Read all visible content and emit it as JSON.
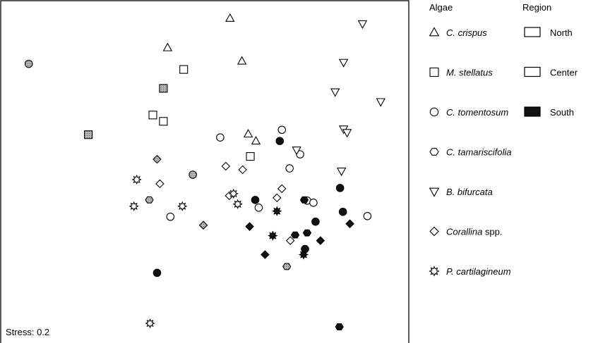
{
  "chart_data": {
    "type": "scatter",
    "title": "",
    "xlabel": "",
    "ylabel": "",
    "annotation": "Stress: 0.2",
    "xlim": [
      0,
      580
    ],
    "ylim": [
      0,
      487
    ],
    "legend_algae_title": "Algae",
    "legend_region_title": "Region",
    "species": [
      {
        "key": "crispus",
        "italic": "C. crispus",
        "suffix": "",
        "marker": "triangle-up"
      },
      {
        "key": "stellatus",
        "italic": "M. stellatus",
        "suffix": "",
        "marker": "square"
      },
      {
        "key": "tomentosum",
        "italic": "C. tomentosum",
        "suffix": "",
        "marker": "circle"
      },
      {
        "key": "tamariscifolia",
        "italic": "C. tamariscifolia",
        "suffix": "",
        "marker": "hexagon"
      },
      {
        "key": "bifurcata",
        "italic": "B. bifurcata",
        "suffix": "",
        "marker": "triangle-down"
      },
      {
        "key": "corallina",
        "italic": "Corallina",
        "suffix": " spp.",
        "marker": "diamond"
      },
      {
        "key": "cartilagineum",
        "italic": "P. cartilagineum",
        "suffix": "",
        "marker": "star"
      }
    ],
    "regions": [
      {
        "key": "north",
        "label": "North",
        "fill": "#ffffff"
      },
      {
        "key": "center",
        "label": "Center",
        "fill": "#ffffff"
      },
      {
        "key": "south",
        "label": "South",
        "fill": "#111111"
      }
    ],
    "points": [
      {
        "x": 326,
        "y": 463,
        "species": "crispus",
        "region": "north"
      },
      {
        "x": 237,
        "y": 421,
        "species": "crispus",
        "region": "north"
      },
      {
        "x": 343,
        "y": 402,
        "species": "crispus",
        "region": "north"
      },
      {
        "x": 352,
        "y": 298,
        "species": "crispus",
        "region": "north"
      },
      {
        "x": 363,
        "y": 288,
        "species": "crispus",
        "region": "north"
      },
      {
        "x": 260,
        "y": 390,
        "species": "stellatus",
        "region": "north"
      },
      {
        "x": 231,
        "y": 363,
        "species": "stellatus",
        "region": "center"
      },
      {
        "x": 216,
        "y": 325,
        "species": "stellatus",
        "region": "north"
      },
      {
        "x": 231,
        "y": 316,
        "species": "stellatus",
        "region": "north"
      },
      {
        "x": 124,
        "y": 297,
        "species": "stellatus",
        "region": "center"
      },
      {
        "x": 355,
        "y": 266,
        "species": "stellatus",
        "region": "north"
      },
      {
        "x": 39,
        "y": 398,
        "species": "tomentosum",
        "region": "center"
      },
      {
        "x": 312,
        "y": 293,
        "species": "tomentosum",
        "region": "north"
      },
      {
        "x": 400,
        "y": 304,
        "species": "tomentosum",
        "region": "north"
      },
      {
        "x": 397,
        "y": 288,
        "species": "tomentosum",
        "region": "south"
      },
      {
        "x": 426,
        "y": 269,
        "species": "tomentosum",
        "region": "north"
      },
      {
        "x": 411,
        "y": 249,
        "species": "tomentosum",
        "region": "north"
      },
      {
        "x": 273,
        "y": 240,
        "species": "tomentosum",
        "region": "center"
      },
      {
        "x": 241,
        "y": 180,
        "species": "tomentosum",
        "region": "north"
      },
      {
        "x": 367,
        "y": 193,
        "species": "tomentosum",
        "region": "north"
      },
      {
        "x": 436,
        "y": 203,
        "species": "tomentosum",
        "region": "north"
      },
      {
        "x": 445,
        "y": 200,
        "species": "tomentosum",
        "region": "north"
      },
      {
        "x": 483,
        "y": 221,
        "species": "tomentosum",
        "region": "south"
      },
      {
        "x": 487,
        "y": 187,
        "species": "tomentosum",
        "region": "south"
      },
      {
        "x": 522,
        "y": 181,
        "species": "tomentosum",
        "region": "north"
      },
      {
        "x": 448,
        "y": 173,
        "species": "tomentosum",
        "region": "south"
      },
      {
        "x": 362,
        "y": 204,
        "species": "tomentosum",
        "region": "south"
      },
      {
        "x": 222,
        "y": 100,
        "species": "tomentosum",
        "region": "south"
      },
      {
        "x": 433,
        "y": 134,
        "species": "tomentosum",
        "region": "south"
      },
      {
        "x": 211,
        "y": 204,
        "species": "tamariscifolia",
        "region": "center"
      },
      {
        "x": 407,
        "y": 109,
        "species": "tamariscifolia",
        "region": "center"
      },
      {
        "x": 432,
        "y": 204,
        "species": "tamariscifolia",
        "region": "south"
      },
      {
        "x": 419,
        "y": 154,
        "species": "tamariscifolia",
        "region": "south"
      },
      {
        "x": 436,
        "y": 157,
        "species": "tamariscifolia",
        "region": "south"
      },
      {
        "x": 482,
        "y": 23,
        "species": "tamariscifolia",
        "region": "south"
      },
      {
        "x": 515,
        "y": 455,
        "species": "bifurcata",
        "region": "north"
      },
      {
        "x": 488,
        "y": 400,
        "species": "bifurcata",
        "region": "north"
      },
      {
        "x": 476,
        "y": 358,
        "species": "bifurcata",
        "region": "north"
      },
      {
        "x": 541,
        "y": 344,
        "species": "bifurcata",
        "region": "north"
      },
      {
        "x": 488,
        "y": 305,
        "species": "bifurcata",
        "region": "north"
      },
      {
        "x": 493,
        "y": 300,
        "species": "bifurcata",
        "region": "north"
      },
      {
        "x": 421,
        "y": 275,
        "species": "bifurcata",
        "region": "north"
      },
      {
        "x": 485,
        "y": 245,
        "species": "bifurcata",
        "region": "north"
      },
      {
        "x": 222,
        "y": 262,
        "species": "corallina",
        "region": "center"
      },
      {
        "x": 226,
        "y": 227,
        "species": "corallina",
        "region": "north"
      },
      {
        "x": 320,
        "y": 252,
        "species": "corallina",
        "region": "north"
      },
      {
        "x": 344,
        "y": 247,
        "species": "corallina",
        "region": "north"
      },
      {
        "x": 400,
        "y": 220,
        "species": "corallina",
        "region": "north"
      },
      {
        "x": 393,
        "y": 207,
        "species": "corallina",
        "region": "north"
      },
      {
        "x": 325,
        "y": 210,
        "species": "corallina",
        "region": "north"
      },
      {
        "x": 288,
        "y": 168,
        "species": "corallina",
        "region": "center"
      },
      {
        "x": 354,
        "y": 166,
        "species": "corallina",
        "region": "south"
      },
      {
        "x": 412,
        "y": 146,
        "species": "corallina",
        "region": "north"
      },
      {
        "x": 455,
        "y": 146,
        "species": "corallina",
        "region": "south"
      },
      {
        "x": 497,
        "y": 170,
        "species": "corallina",
        "region": "south"
      },
      {
        "x": 376,
        "y": 126,
        "species": "corallina",
        "region": "south"
      },
      {
        "x": 193,
        "y": 233,
        "species": "cartilagineum",
        "region": "north"
      },
      {
        "x": 189,
        "y": 195,
        "species": "cartilagineum",
        "region": "north"
      },
      {
        "x": 258,
        "y": 195,
        "species": "cartilagineum",
        "region": "north"
      },
      {
        "x": 331,
        "y": 213,
        "species": "cartilagineum",
        "region": "north"
      },
      {
        "x": 337,
        "y": 198,
        "species": "cartilagineum",
        "region": "north"
      },
      {
        "x": 393,
        "y": 188,
        "species": "cartilagineum",
        "region": "south"
      },
      {
        "x": 387,
        "y": 153,
        "species": "cartilagineum",
        "region": "south"
      },
      {
        "x": 431,
        "y": 126,
        "species": "cartilagineum",
        "region": "south"
      },
      {
        "x": 212,
        "y": 28,
        "species": "cartilagineum",
        "region": "north"
      }
    ]
  }
}
